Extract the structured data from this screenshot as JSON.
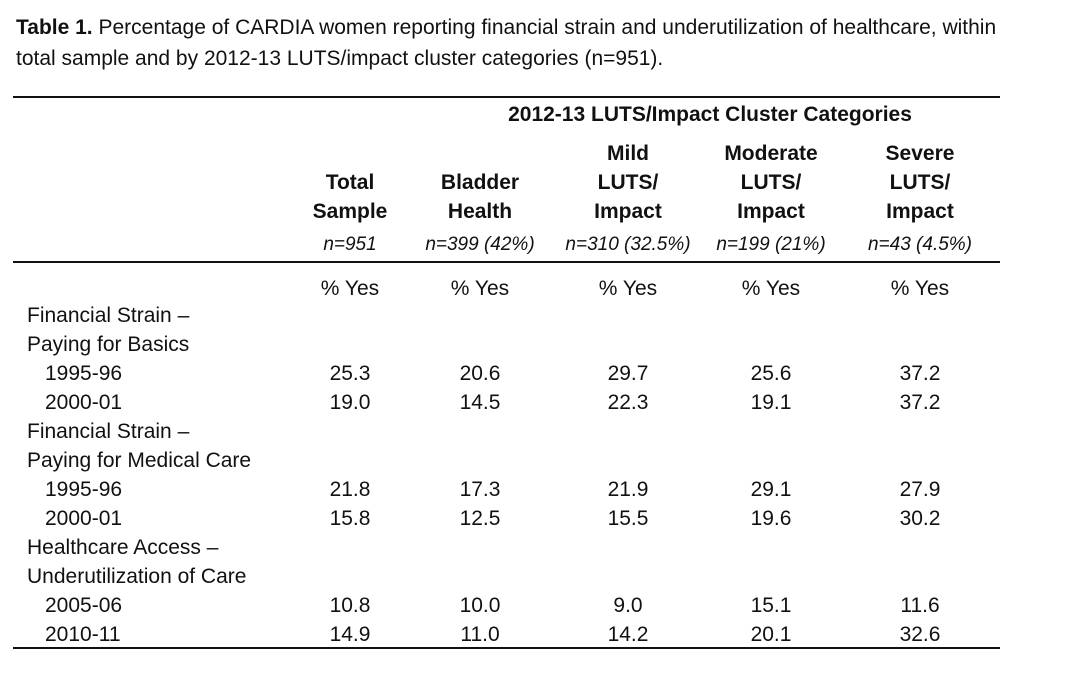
{
  "caption": {
    "label": "Table 1.",
    "text": " Percentage of CARDIA women reporting financial strain and underutilization of healthcare, within total sample and by 2012-13 LUTS/impact cluster categories (n=951)."
  },
  "table": {
    "group_header": "2012-13 LUTS/Impact Cluster Categories",
    "columns": [
      {
        "lines": [
          "Total",
          "Sample"
        ],
        "n": "n=951",
        "unit": "% Yes"
      },
      {
        "lines": [
          "Bladder",
          "Health"
        ],
        "n": "n=399 (42%)",
        "unit": "% Yes"
      },
      {
        "lines": [
          "Mild",
          "LUTS/",
          "Impact"
        ],
        "n": "n=310 (32.5%)",
        "unit": "% Yes"
      },
      {
        "lines": [
          "Moderate",
          "LUTS/",
          "Impact"
        ],
        "n": "n=199 (21%)",
        "unit": "% Yes"
      },
      {
        "lines": [
          "Severe",
          "LUTS/",
          "Impact"
        ],
        "n": "n=43 (4.5%)",
        "unit": "% Yes"
      }
    ],
    "sections": [
      {
        "label": [
          "Financial Strain –",
          "Paying for Basics"
        ],
        "rows": [
          {
            "year": "1995-96",
            "values": [
              "25.3",
              "20.6",
              "29.7",
              "25.6",
              "37.2"
            ]
          },
          {
            "year": "2000-01",
            "values": [
              "19.0",
              "14.5",
              "22.3",
              "19.1",
              "37.2"
            ]
          }
        ]
      },
      {
        "label": [
          "Financial Strain –",
          "Paying for Medical Care"
        ],
        "rows": [
          {
            "year": "1995-96",
            "values": [
              "21.8",
              "17.3",
              "21.9",
              "29.1",
              "27.9"
            ]
          },
          {
            "year": "2000-01",
            "values": [
              "15.8",
              "12.5",
              "15.5",
              "19.6",
              "30.2"
            ]
          }
        ]
      },
      {
        "label": [
          "Healthcare Access –",
          "Underutilization of Care"
        ],
        "rows": [
          {
            "year": "2005-06",
            "values": [
              "10.8",
              "10.0",
              "9.0",
              "15.1",
              "11.6"
            ]
          },
          {
            "year": "2010-11",
            "values": [
              "14.9",
              "11.0",
              "14.2",
              "20.1",
              "32.6"
            ]
          }
        ]
      }
    ]
  }
}
